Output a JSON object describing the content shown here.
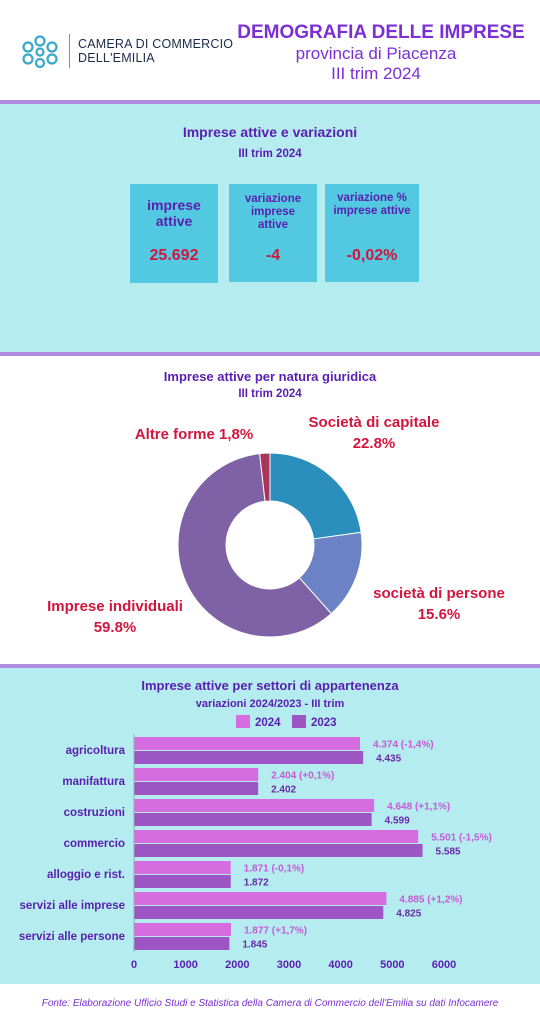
{
  "header": {
    "org_line1": "CAMERA DI COMMERCIO",
    "org_line2": "DELL'EMILIA",
    "title": "DEMOGRAFIA DELLE IMPRESE",
    "subtitle1": "provincia di Piacenza",
    "subtitle2": "III trim 2024"
  },
  "colors": {
    "accent_purple": "#7b2fd6",
    "dark_purple": "#5a1fb0",
    "red": "#d2153c",
    "cyan_bg": "#b4ecf0",
    "kpi_box": "#52c9e0",
    "bar_2024": "#d56ce0",
    "bar_2023": "#9d55c4"
  },
  "kpis": {
    "title": "Imprese attive e variazioni",
    "subtitle": "III trim 2024",
    "items": [
      {
        "label": "imprese attive",
        "value": "25.692"
      },
      {
        "label": "variazione imprese attive",
        "value": "-4"
      },
      {
        "label": "variazione % imprese attive",
        "value": "-0,02%"
      }
    ]
  },
  "chart_data": [
    {
      "type": "pie",
      "title": "Imprese attive per natura giuridica",
      "subtitle": "III trim 2024",
      "labels": [
        "Società di capitale",
        "società di persone",
        "Imprese individuali",
        "Altre forme"
      ],
      "values": [
        22.8,
        15.6,
        59.8,
        1.8
      ],
      "colors": [
        "#2b8fbd",
        "#6b82c4",
        "#7f62a5",
        "#a8365a"
      ],
      "display_labels": [
        {
          "name": "Società di capitale",
          "pct": "22.8%"
        },
        {
          "name": "società di persone",
          "pct": "15.6%"
        },
        {
          "name": "Imprese individuali",
          "pct": "59.8%"
        },
        {
          "name": "Altre forme 1,8%",
          "pct": ""
        }
      ]
    },
    {
      "type": "bar",
      "orientation": "horizontal",
      "title": "Imprese attive per settori di appartenenza",
      "subtitle": "variazioni 2024/2023 - III trim",
      "categories": [
        "agricoltura",
        "manifattura",
        "costruzioni",
        "commercio",
        "alloggio e rist.",
        "servizi alle imprese",
        "servizi alle persone"
      ],
      "series": [
        {
          "name": "2024",
          "values": [
            4374,
            2404,
            4648,
            5501,
            1871,
            4885,
            1877
          ],
          "labels": [
            "4.374 (-1,4%)",
            "2.404 (+0,1%)",
            "4.648 (+1,1%)",
            "5.501 (-1,5%)",
            "1.871 (-0,1%)",
            "4.885 (+1,2%)",
            "1.877 (+1,7%)"
          ]
        },
        {
          "name": "2023",
          "values": [
            4435,
            2402,
            4599,
            5585,
            1872,
            4825,
            1845
          ],
          "labels": [
            "4.435",
            "2.402",
            "4.599",
            "5.585",
            "1.872",
            "4.825",
            "1.845"
          ]
        }
      ],
      "xlim": [
        0,
        6000
      ],
      "xticks": [
        "0",
        "1000",
        "2000",
        "3000",
        "4000",
        "5000",
        "6000"
      ],
      "legend_position": "top",
      "grid": false
    }
  ],
  "footer": "Fonte: Elaborazione Ufficio Studi e Statistica della Camera di Commercio dell'Emilia su dati Infocamere"
}
